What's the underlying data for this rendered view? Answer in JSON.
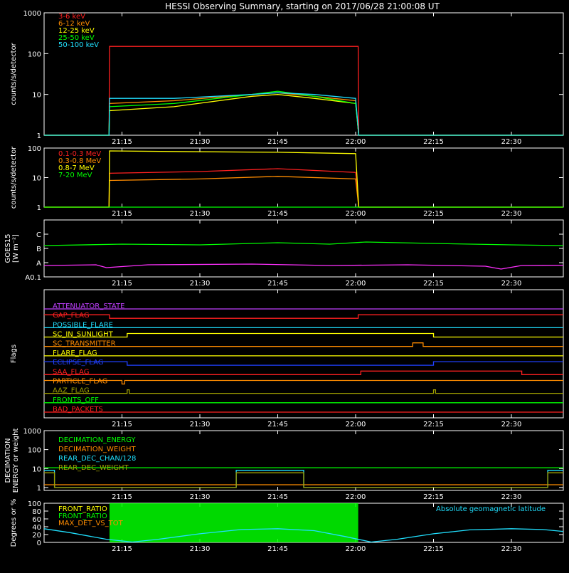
{
  "title": "HESSI Observing Summary, starting on 2017/06/28 21:00:08 UT",
  "x_ticks": [
    "21:15",
    "21:30",
    "21:45",
    "22:00",
    "22:15",
    "22:30"
  ],
  "x_tick_minutes": [
    15,
    30,
    45,
    60,
    75,
    90
  ],
  "x_range_minutes": [
    0,
    100
  ],
  "colors": {
    "frame": "#ffffff",
    "red": "#ff2020",
    "orange": "#ff8c00",
    "yellow": "#ffff00",
    "green": "#00ff00",
    "cyan": "#20e0ff",
    "magenta": "#ff30ff",
    "blue": "#2040ff",
    "olive": "#a0a000",
    "purple": "#c040ff"
  },
  "chart_data": [
    {
      "id": "counts_low",
      "type": "line",
      "ylabel": "counts/s/detector",
      "y_scale": "log",
      "ylim": [
        1,
        1000
      ],
      "y_ticks": [
        "1",
        "10",
        "100",
        "1000"
      ],
      "y_tick_values": [
        1,
        10,
        100,
        1000
      ],
      "series": [
        {
          "name": "3-6 keV",
          "color": "#ff2020",
          "points": [
            [
              0,
              1
            ],
            [
              12.5,
              1
            ],
            [
              12.6,
              150
            ],
            [
              60,
              150
            ],
            [
              60.5,
              150
            ],
            [
              60.6,
              1
            ],
            [
              100,
              1
            ]
          ]
        },
        {
          "name": "6-12 keV",
          "color": "#ff8c00",
          "points": [
            [
              0,
              1
            ],
            [
              12.5,
              1
            ],
            [
              12.6,
              6
            ],
            [
              25,
              7
            ],
            [
              40,
              10
            ],
            [
              45,
              11
            ],
            [
              52,
              9
            ],
            [
              60,
              7
            ],
            [
              60.6,
              1
            ],
            [
              100,
              1
            ]
          ]
        },
        {
          "name": "12-25 keV",
          "color": "#ffff00",
          "points": [
            [
              0,
              1
            ],
            [
              12.5,
              1
            ],
            [
              12.6,
              4
            ],
            [
              25,
              5
            ],
            [
              40,
              9
            ],
            [
              45,
              10
            ],
            [
              52,
              8
            ],
            [
              60,
              6
            ],
            [
              60.6,
              1
            ],
            [
              100,
              1
            ]
          ]
        },
        {
          "name": "25-50 keV",
          "color": "#00ff00",
          "points": [
            [
              0,
              1
            ],
            [
              12.5,
              1
            ],
            [
              12.6,
              5
            ],
            [
              25,
              6
            ],
            [
              40,
              10
            ],
            [
              45,
              12
            ],
            [
              52,
              9
            ],
            [
              60,
              6
            ],
            [
              60.6,
              1
            ],
            [
              100,
              1
            ]
          ]
        },
        {
          "name": "50-100 keV",
          "color": "#20e0ff",
          "points": [
            [
              0,
              1
            ],
            [
              12.5,
              1
            ],
            [
              12.6,
              8
            ],
            [
              25,
              8
            ],
            [
              40,
              10
            ],
            [
              45,
              11
            ],
            [
              52,
              10
            ],
            [
              60,
              8
            ],
            [
              60.6,
              1
            ],
            [
              100,
              1
            ]
          ]
        }
      ]
    },
    {
      "id": "counts_high",
      "type": "line",
      "ylabel": "counts/s/detector",
      "y_scale": "log",
      "ylim": [
        1,
        100
      ],
      "y_ticks": [
        "1",
        "10",
        "100"
      ],
      "y_tick_values": [
        1,
        10,
        100
      ],
      "series": [
        {
          "name": "0.1-0.3 MeV",
          "color": "#ff2020",
          "points": [
            [
              0,
              1
            ],
            [
              12.5,
              1
            ],
            [
              12.6,
              14
            ],
            [
              30,
              16
            ],
            [
              45,
              20
            ],
            [
              60,
              15
            ],
            [
              60.6,
              1
            ],
            [
              100,
              1
            ]
          ]
        },
        {
          "name": "0.3-0.8 MeV",
          "color": "#ff8c00",
          "points": [
            [
              0,
              1
            ],
            [
              12.5,
              1
            ],
            [
              12.6,
              8
            ],
            [
              30,
              9
            ],
            [
              45,
              11
            ],
            [
              60,
              9
            ],
            [
              60.6,
              1
            ],
            [
              100,
              1
            ]
          ]
        },
        {
          "name": "0.8-7 MeV",
          "color": "#ffff00",
          "points": [
            [
              0,
              1
            ],
            [
              12.5,
              1
            ],
            [
              12.6,
              80
            ],
            [
              30,
              75
            ],
            [
              45,
              72
            ],
            [
              60,
              65
            ],
            [
              60.6,
              1
            ],
            [
              100,
              1
            ]
          ]
        },
        {
          "name": "7-20 MeV",
          "color": "#00ff00",
          "points": [
            [
              0,
              1
            ],
            [
              100,
              1
            ]
          ]
        }
      ]
    },
    {
      "id": "goes",
      "type": "line",
      "ylabel": "GOES15",
      "ylabel2": "[W m⁻²]",
      "y_scale": "linear",
      "ylim": [
        0,
        4
      ],
      "y_ticks": [
        "A0.1",
        "A",
        "B",
        "C"
      ],
      "y_tick_values": [
        0,
        1,
        2,
        3
      ],
      "series": [
        {
          "color": "#00ff00",
          "points": [
            [
              0,
              2.2
            ],
            [
              15,
              2.3
            ],
            [
              30,
              2.25
            ],
            [
              45,
              2.4
            ],
            [
              55,
              2.3
            ],
            [
              62,
              2.45
            ],
            [
              75,
              2.35
            ],
            [
              90,
              2.25
            ],
            [
              100,
              2.2
            ]
          ]
        },
        {
          "color": "#ff30ff",
          "points": [
            [
              0,
              0.8
            ],
            [
              10,
              0.85
            ],
            [
              12,
              0.65
            ],
            [
              20,
              0.85
            ],
            [
              40,
              0.9
            ],
            [
              55,
              0.8
            ],
            [
              70,
              0.85
            ],
            [
              85,
              0.75
            ],
            [
              88,
              0.55
            ],
            [
              92,
              0.8
            ],
            [
              100,
              0.82
            ]
          ]
        }
      ]
    },
    {
      "id": "flags",
      "type": "line",
      "ylabel": "Flags",
      "flags": [
        {
          "name": "ATTENUATOR_STATE",
          "color": "#c040ff",
          "segments": [
            [
              0,
              0
            ],
            [
              100,
              0
            ]
          ]
        },
        {
          "name": "GAP_FLAG",
          "color": "#ff2020",
          "segments": [
            [
              0,
              1
            ],
            [
              12.6,
              1
            ],
            [
              12.6,
              0
            ],
            [
              60.5,
              0
            ],
            [
              60.5,
              1
            ],
            [
              100,
              1
            ]
          ]
        },
        {
          "name": "POSSIBLE_FLARE",
          "color": "#20e0ff",
          "segments": [
            [
              0,
              0
            ],
            [
              100,
              0
            ]
          ]
        },
        {
          "name": "SC_IN_SUNLIGHT",
          "color": "#ffff00",
          "segments": [
            [
              0,
              0
            ],
            [
              16,
              0
            ],
            [
              16,
              1
            ],
            [
              75,
              1
            ],
            [
              75,
              0
            ],
            [
              100,
              0
            ]
          ]
        },
        {
          "name": "SC_TRANSMITTER",
          "color": "#ff8c00",
          "segments": [
            [
              0,
              0
            ],
            [
              71,
              0
            ],
            [
              71,
              1
            ],
            [
              73,
              1
            ],
            [
              73,
              0
            ],
            [
              100,
              0
            ]
          ]
        },
        {
          "name": "FLARE_FLAG",
          "color": "#ffff00",
          "segments": [
            [
              0,
              0
            ],
            [
              100,
              0
            ]
          ]
        },
        {
          "name": "ECLIPSE_FLAG",
          "color": "#2040ff",
          "segments": [
            [
              0,
              1
            ],
            [
              16,
              1
            ],
            [
              16,
              0
            ],
            [
              75,
              0
            ],
            [
              75,
              1
            ],
            [
              100,
              1
            ]
          ]
        },
        {
          "name": "SAA_FLAG",
          "color": "#ff2020",
          "segments": [
            [
              0,
              0
            ],
            [
              61,
              0
            ],
            [
              61,
              1
            ],
            [
              92,
              1
            ],
            [
              92,
              0
            ],
            [
              100,
              0
            ]
          ]
        },
        {
          "name": "PARTICLE_FLAG",
          "color": "#ff8c00",
          "segments": [
            [
              0,
              1
            ],
            [
              15,
              1
            ],
            [
              15,
              0
            ],
            [
              15.5,
              0
            ],
            [
              15.5,
              1
            ],
            [
              100,
              1
            ]
          ]
        },
        {
          "name": "AAZ_FLAG",
          "color": "#a0a000",
          "segments": [
            [
              0,
              0
            ],
            [
              16,
              0
            ],
            [
              16,
              1
            ],
            [
              16.4,
              1
            ],
            [
              16.4,
              0
            ],
            [
              75,
              0
            ],
            [
              75,
              1
            ],
            [
              75.4,
              1
            ],
            [
              75.4,
              0
            ],
            [
              100,
              0
            ]
          ]
        },
        {
          "name": "FRONTS_OFF",
          "color": "#00ff00",
          "segments": [
            [
              0,
              0
            ],
            [
              100,
              0
            ]
          ]
        },
        {
          "name": "BAD_PACKETS",
          "color": "#ff2020",
          "segments": [
            [
              0,
              0
            ],
            [
              100,
              0
            ]
          ]
        }
      ]
    },
    {
      "id": "decimation",
      "type": "line",
      "ylabel": "DECIMATION",
      "ylabel2": "ENERGY or weight",
      "y_scale": "log",
      "ylim": [
        0.7,
        1000
      ],
      "y_ticks": [
        "1",
        "10",
        "100",
        "1000"
      ],
      "y_tick_values": [
        1,
        10,
        100,
        1000
      ],
      "series": [
        {
          "name": "DECIMATION_ENERGY",
          "color": "#00ff00",
          "points": [
            [
              0,
              11
            ],
            [
              100,
              11
            ]
          ]
        },
        {
          "name": "DECIMATION_WEIGHT",
          "color": "#ff8c00",
          "points": [
            [
              0,
              1.4
            ],
            [
              100,
              1.4
            ]
          ]
        },
        {
          "name": "REAR_DEC_CHAN/128",
          "color": "#20e0ff",
          "points": [
            [
              0,
              8
            ],
            [
              2,
              8
            ],
            [
              2,
              1
            ],
            [
              37,
              1
            ],
            [
              37,
              8
            ],
            [
              50,
              8
            ],
            [
              50,
              1
            ],
            [
              97,
              1
            ],
            [
              97,
              8
            ],
            [
              100,
              8
            ]
          ]
        },
        {
          "name": "REAR_DEC_WEIGHT",
          "color": "#a0a000",
          "points": [
            [
              0,
              6
            ],
            [
              2,
              6
            ],
            [
              2,
              1
            ],
            [
              37,
              1
            ],
            [
              37,
              6
            ],
            [
              50,
              6
            ],
            [
              50,
              1
            ],
            [
              97,
              1
            ],
            [
              97,
              6
            ],
            [
              100,
              6
            ]
          ]
        }
      ]
    },
    {
      "id": "ratios",
      "type": "line",
      "ylabel": "Degrees or %",
      "y_scale": "linear",
      "ylim": [
        0,
        100
      ],
      "y_ticks": [
        "0",
        "20",
        "40",
        "60",
        "80",
        "100"
      ],
      "y_tick_values": [
        0,
        20,
        40,
        60,
        80,
        100
      ],
      "annotation": "Absolute geomagnetic latitude",
      "series": [
        {
          "name": "FRONT_RATIO",
          "color": "#ffff00"
        },
        {
          "name": "FRONT_RATIO",
          "color": "#00ff00",
          "fill_range": [
            12.6,
            60.5
          ]
        },
        {
          "name": "MAX_DET_VS_TOT",
          "color": "#ff8c00"
        },
        {
          "name": "Absolute geomagnetic latitude",
          "color": "#20e0ff",
          "points": [
            [
              0,
              35
            ],
            [
              5,
              25
            ],
            [
              12,
              8
            ],
            [
              17,
              1
            ],
            [
              22,
              8
            ],
            [
              30,
              22
            ],
            [
              38,
              33
            ],
            [
              45,
              35
            ],
            [
              52,
              30
            ],
            [
              58,
              15
            ],
            [
              63,
              1
            ],
            [
              68,
              8
            ],
            [
              75,
              22
            ],
            [
              82,
              32
            ],
            [
              90,
              35
            ],
            [
              96,
              33
            ],
            [
              100,
              28
            ]
          ]
        }
      ]
    }
  ]
}
